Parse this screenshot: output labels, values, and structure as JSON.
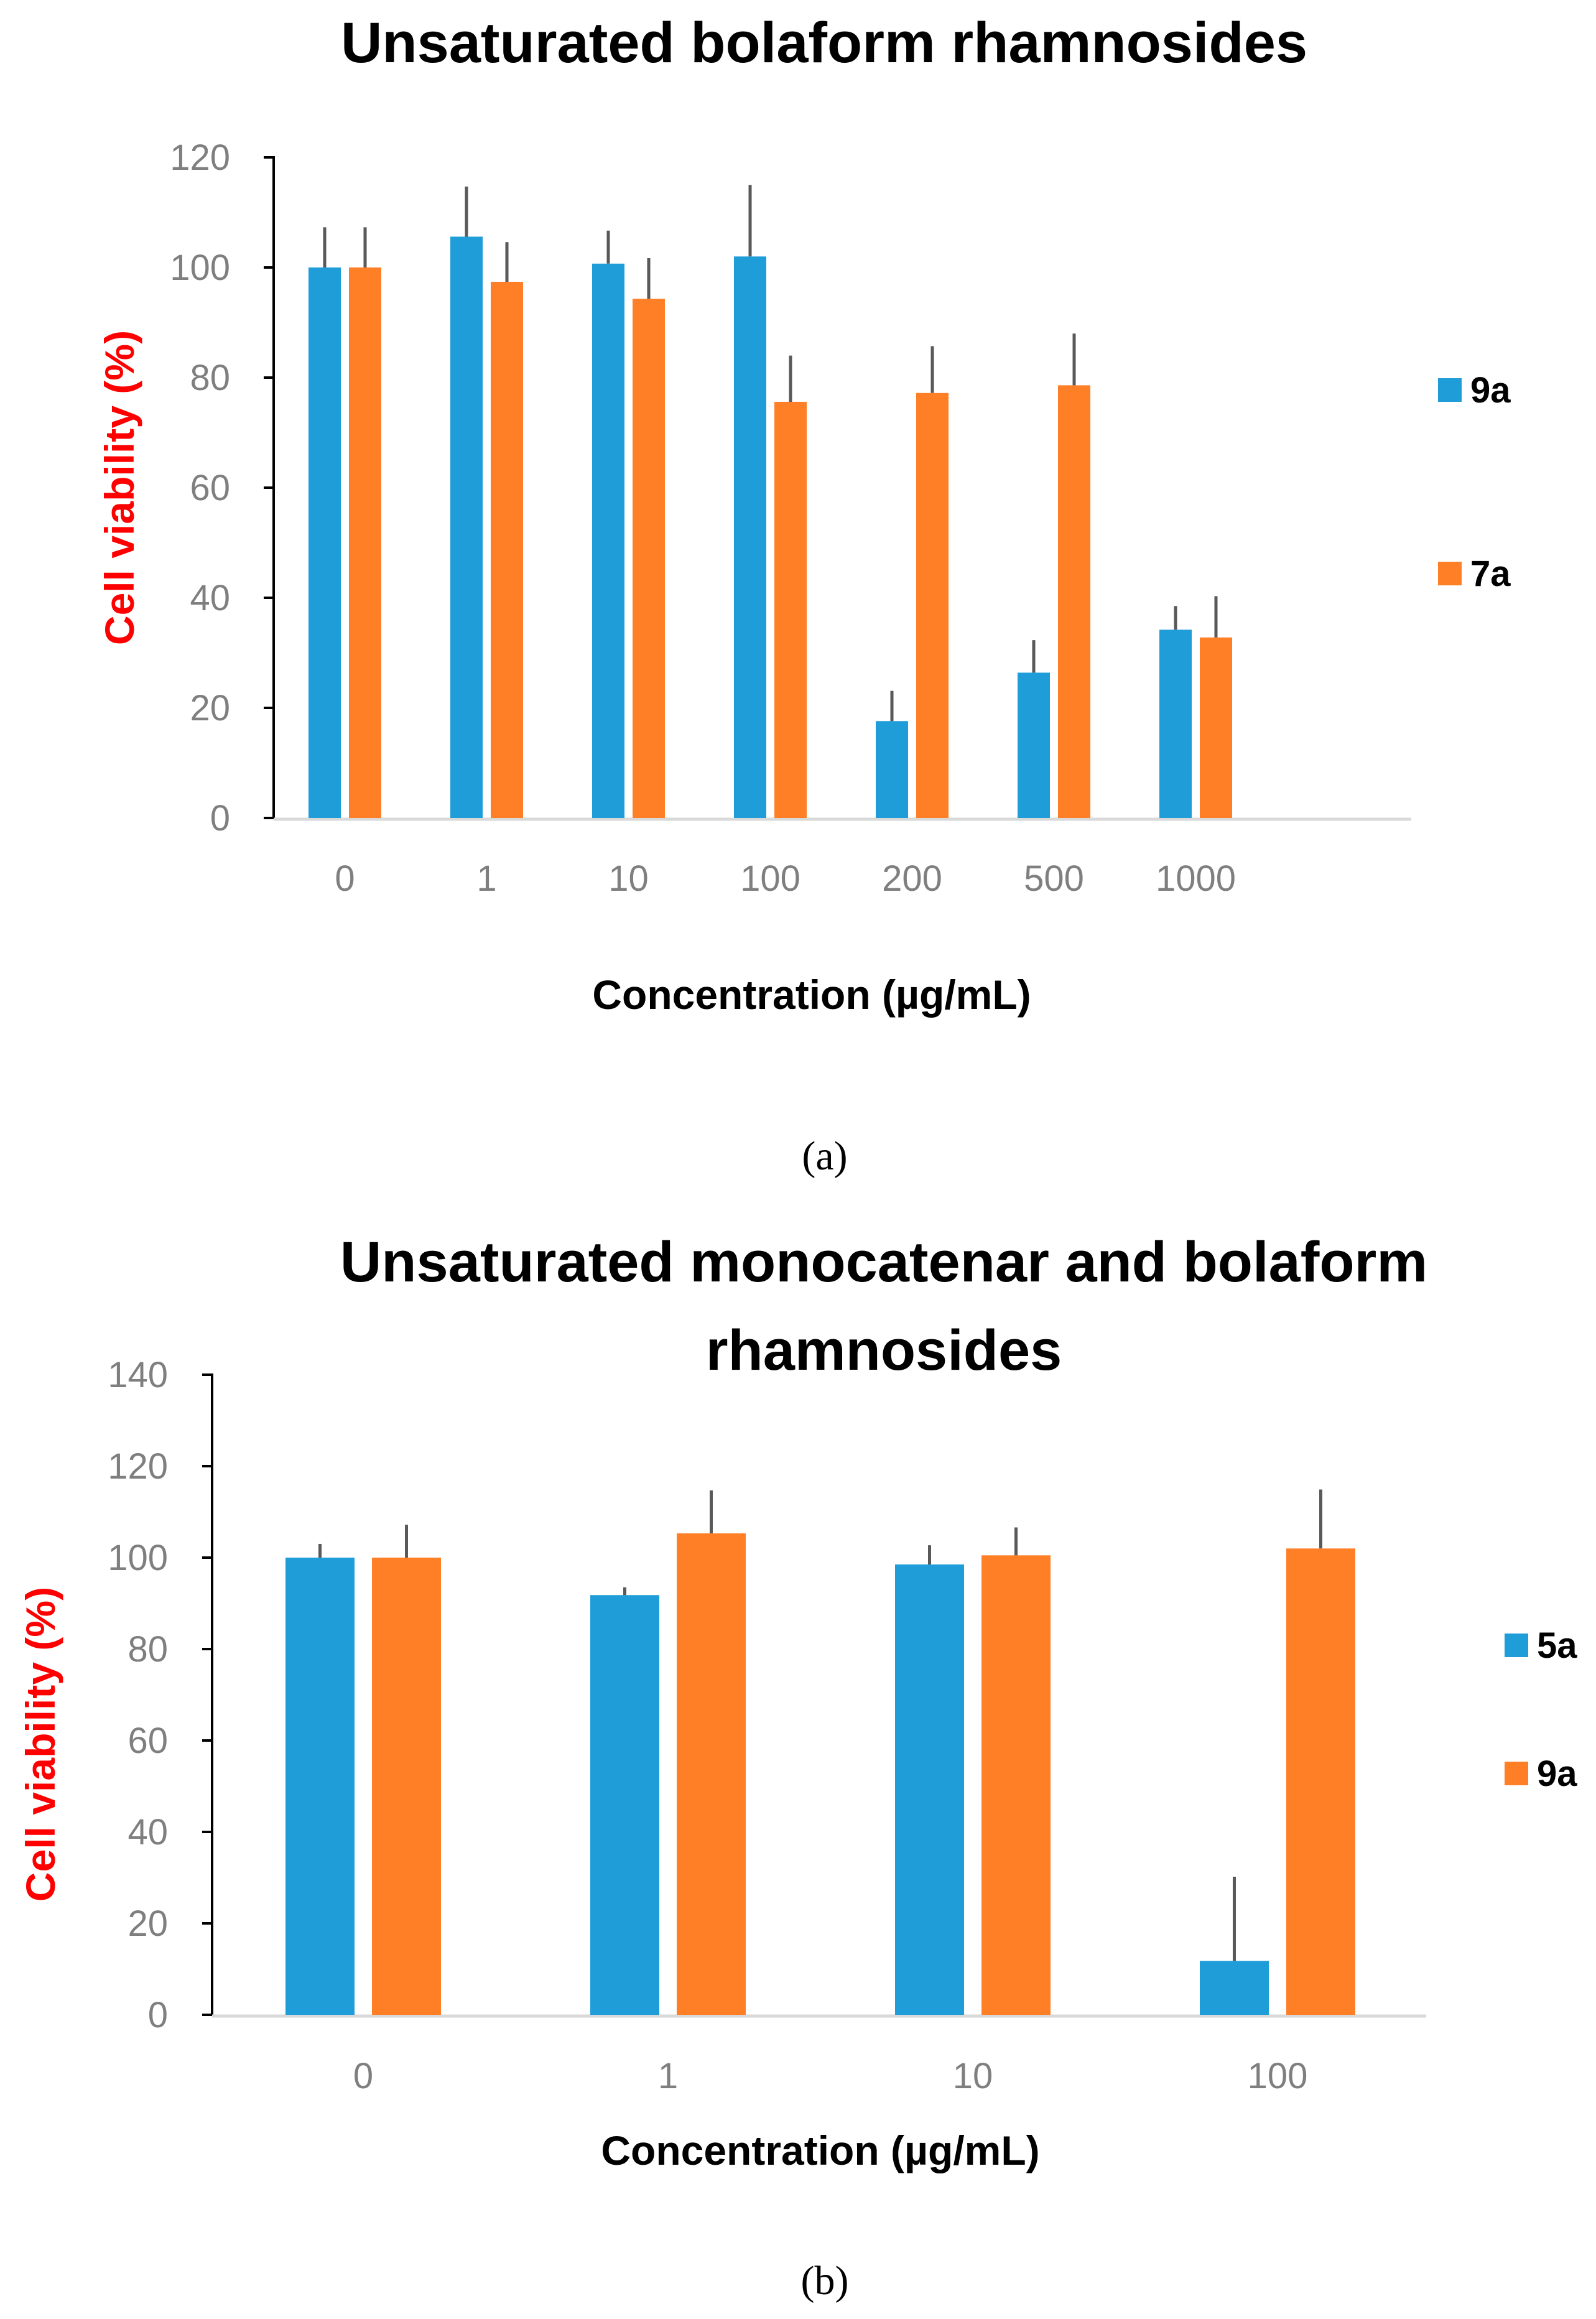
{
  "chart_data": [
    {
      "type": "bar",
      "title": "Unsaturated bolaform rhamnosides",
      "title_lines": [
        "Unsaturated bolaform rhamnosides"
      ],
      "caption": "(a)",
      "xlabel": "Concentration (µg/mL)",
      "ylabel": "Cell viability (%)",
      "ylim": [
        0,
        120
      ],
      "yticks": [
        "0",
        "20",
        "40",
        "60",
        "80",
        "100",
        "120"
      ],
      "categories": [
        "0",
        "1",
        "10",
        "100",
        "200",
        "500",
        "1000"
      ],
      "legend_position": "right",
      "series": [
        {
          "name": "9a",
          "color": "#1e9dd8",
          "values": [
            100,
            105.6,
            100.7,
            102,
            17.6,
            26.4,
            34.2
          ],
          "error_upper": [
            107.3,
            114.7,
            106.7,
            115,
            23.1,
            32.3,
            38.5
          ]
        },
        {
          "name": "7a",
          "color": "#ff7f27",
          "values": [
            100,
            97.4,
            94.3,
            75.6,
            77.2,
            78.6,
            32.8
          ],
          "error_upper": [
            107.3,
            104.6,
            101.7,
            84,
            85.7,
            88,
            40.3
          ]
        }
      ]
    },
    {
      "type": "bar",
      "title": "Unsaturated monocatenar and bolaform rhamnosides",
      "title_lines": [
        "Unsaturated monocatenar and bolaform",
        "rhamnosides"
      ],
      "caption": "(b)",
      "xlabel": "Concentration (µg/mL)",
      "ylabel": "Cell viability (%)",
      "ylim": [
        0,
        140
      ],
      "yticks": [
        "0",
        "20",
        "40",
        "60",
        "80",
        "100",
        "120",
        "140"
      ],
      "categories": [
        "0",
        "1",
        "10",
        "100"
      ],
      "legend_position": "right",
      "series": [
        {
          "name": "5a",
          "color": "#1e9dd8",
          "values": [
            100,
            91.8,
            98.5,
            11.8
          ],
          "error_upper": [
            103,
            93.5,
            102.7,
            30.2
          ]
        },
        {
          "name": "9a",
          "color": "#ff7f27",
          "values": [
            100,
            105.3,
            100.5,
            102
          ],
          "error_upper": [
            107.2,
            114.7,
            106.6,
            114.9
          ]
        }
      ]
    }
  ]
}
